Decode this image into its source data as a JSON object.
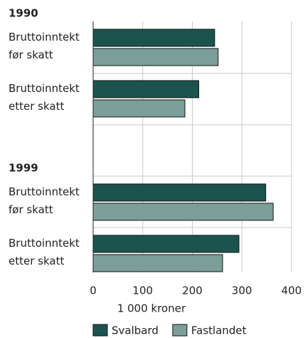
{
  "chart_data": {
    "type": "bar",
    "orientation": "horizontal",
    "group_labels": [
      "1990",
      "1999"
    ],
    "categories": [
      "Bruttoinntekt før skatt",
      "Bruttoinntekt etter skatt",
      "Bruttoinntekt før skatt",
      "Bruttoinntekt etter skatt"
    ],
    "category_groups": [
      0,
      0,
      1,
      1
    ],
    "series": [
      {
        "name": "Svalbard",
        "color": "#1b544f",
        "values": [
          245,
          213,
          348,
          294
        ]
      },
      {
        "name": "Fastlandet",
        "color": "#7c9e99",
        "values": [
          252,
          185,
          363,
          261
        ]
      }
    ],
    "xlabel": "1 000 kroner",
    "xlim": [
      0,
      400
    ],
    "xticks": [
      0,
      100,
      200,
      300,
      400
    ],
    "grid": true,
    "legend": "bottom"
  }
}
